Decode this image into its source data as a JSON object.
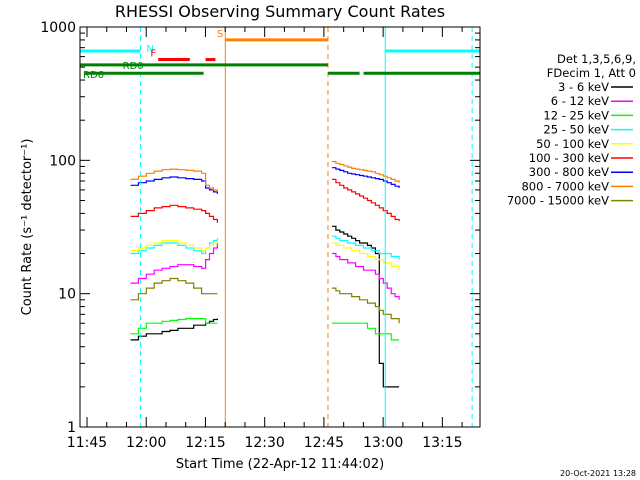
{
  "chart_data": {
    "type": "line",
    "title": "RHESSI Observing Summary Count Rates",
    "xlabel": "Start Time (22-Apr-12 11:44:02)",
    "ylabel": "Count Rate (s⁻¹ detector⁻¹)",
    "yscale": "log",
    "ylim": [
      1,
      1000
    ],
    "xlim_minutes": [
      -0.8,
      100.5
    ],
    "y_ticks": [
      {
        "v": 1,
        "label": "1"
      },
      {
        "v": 10,
        "label": "10"
      },
      {
        "v": 100,
        "label": "100"
      },
      {
        "v": 1000,
        "label": "1000"
      }
    ],
    "x_ticks": [
      {
        "v": 0.97,
        "label": "11:45"
      },
      {
        "v": 15.97,
        "label": "12:00"
      },
      {
        "v": 30.97,
        "label": "12:15"
      },
      {
        "v": 45.97,
        "label": "12:30"
      },
      {
        "v": 60.97,
        "label": "12:45"
      },
      {
        "v": 75.97,
        "label": "13:00"
      },
      {
        "v": 90.97,
        "label": "13:15"
      }
    ],
    "legend_header": [
      "Det 1,3,5,6,9,",
      "FDecim 1, Att 0"
    ],
    "series": [
      {
        "name": "3 - 6 keV",
        "color": "#000000",
        "x": [
          12,
          14,
          16,
          18,
          20,
          22,
          24,
          26,
          28,
          30,
          31,
          32,
          33,
          34,
          63,
          64,
          65,
          66,
          67,
          68,
          69,
          70,
          71,
          72,
          73,
          74,
          75,
          76,
          77,
          78,
          79,
          80
        ],
        "y": [
          4.5,
          4.8,
          5,
          5,
          5.2,
          5.3,
          5.5,
          5.5,
          5.8,
          5.8,
          6,
          6.2,
          6.4,
          6.5,
          32,
          30,
          29,
          28,
          27,
          26,
          25,
          24,
          24,
          23,
          22,
          20,
          3,
          2,
          2,
          2,
          2,
          2
        ]
      },
      {
        "name": "6 - 12 keV",
        "color": "#ff00ff",
        "x": [
          12,
          14,
          16,
          18,
          20,
          22,
          24,
          26,
          28,
          30,
          31,
          32,
          33,
          34,
          63,
          64,
          65,
          66,
          67,
          68,
          69,
          70,
          71,
          72,
          73,
          74,
          75,
          76,
          77,
          78,
          79,
          80
        ],
        "y": [
          12,
          13,
          14,
          15,
          15.5,
          16,
          16.5,
          16.5,
          16,
          15.5,
          18,
          20,
          22,
          24,
          20,
          19,
          18,
          18,
          17,
          17,
          16,
          16,
          15,
          15,
          15,
          14,
          13,
          12,
          11,
          10,
          9.5,
          9
        ]
      },
      {
        "name": "12 - 25 keV",
        "color": "#00ff00",
        "x": [
          12,
          14,
          16,
          18,
          20,
          22,
          24,
          26,
          28,
          30,
          31,
          32,
          33,
          34,
          63,
          64,
          65,
          66,
          67,
          68,
          69,
          70,
          71,
          72,
          73,
          74,
          75,
          76,
          77,
          78,
          79,
          80
        ],
        "y": [
          5,
          5.5,
          6,
          6,
          6.2,
          6.3,
          6.4,
          6.5,
          6.5,
          6.5,
          6,
          6,
          6,
          6,
          6,
          6,
          6,
          6,
          6,
          6,
          6,
          6,
          6,
          5.5,
          5.5,
          5,
          5,
          5,
          5,
          4.5,
          4.5,
          4.5
        ]
      },
      {
        "name": "25 - 50 keV",
        "color": "#00ffff",
        "x": [
          12,
          14,
          16,
          18,
          20,
          22,
          24,
          26,
          28,
          30,
          31,
          32,
          33,
          34,
          63,
          64,
          65,
          66,
          67,
          68,
          69,
          70,
          71,
          72,
          73,
          74,
          75,
          76,
          77,
          78,
          79,
          80
        ],
        "y": [
          20,
          21,
          22,
          23,
          24,
          24,
          23,
          22,
          21,
          20,
          22,
          24,
          25,
          26,
          27,
          26,
          25,
          25,
          24,
          24,
          23,
          23,
          22,
          22,
          21,
          21,
          20,
          20,
          20,
          19,
          19,
          18
        ]
      },
      {
        "name": "50 - 100 keV",
        "color": "#ffff00",
        "x": [
          12,
          14,
          16,
          18,
          20,
          22,
          24,
          26,
          28,
          30,
          31,
          32,
          33,
          34,
          63,
          64,
          65,
          66,
          67,
          68,
          69,
          70,
          71,
          72,
          73,
          74,
          75,
          76,
          77,
          78,
          79,
          80
        ],
        "y": [
          21,
          22,
          23,
          24,
          25,
          25,
          24,
          23,
          22,
          21,
          22,
          23,
          24,
          25,
          24,
          23,
          23,
          22,
          22,
          21,
          21,
          20,
          20,
          19,
          19,
          18,
          18,
          17,
          17,
          16,
          16,
          15
        ]
      },
      {
        "name": "100 - 300 keV",
        "color": "#ff0000",
        "x": [
          12,
          14,
          16,
          18,
          20,
          22,
          24,
          26,
          28,
          30,
          31,
          32,
          33,
          34,
          63,
          64,
          65,
          66,
          67,
          68,
          69,
          70,
          71,
          72,
          73,
          74,
          75,
          76,
          77,
          78,
          79,
          80
        ],
        "y": [
          38,
          40,
          42,
          44,
          45,
          46,
          45,
          44,
          43,
          42,
          40,
          38,
          36,
          34,
          72,
          68,
          65,
          62,
          60,
          58,
          56,
          54,
          52,
          50,
          48,
          46,
          44,
          42,
          40,
          38,
          36,
          35
        ]
      },
      {
        "name": "300 - 800 keV",
        "color": "#0000ff",
        "x": [
          12,
          14,
          16,
          18,
          20,
          22,
          24,
          26,
          28,
          30,
          31,
          32,
          33,
          34,
          63,
          64,
          65,
          66,
          67,
          68,
          69,
          70,
          71,
          72,
          73,
          74,
          75,
          76,
          77,
          78,
          79,
          80
        ],
        "y": [
          65,
          68,
          70,
          72,
          74,
          75,
          74,
          73,
          72,
          70,
          62,
          60,
          58,
          56,
          88,
          86,
          84,
          82,
          80,
          79,
          78,
          77,
          76,
          75,
          74,
          73,
          72,
          70,
          68,
          66,
          64,
          62
        ]
      },
      {
        "name": "800 - 7000 keV",
        "color": "#ff8000",
        "x": [
          12,
          14,
          16,
          18,
          20,
          22,
          24,
          26,
          28,
          30,
          31,
          32,
          33,
          34,
          63,
          64,
          65,
          66,
          67,
          68,
          69,
          70,
          71,
          72,
          73,
          74,
          75,
          76,
          77,
          78,
          79,
          80
        ],
        "y": [
          72,
          76,
          80,
          83,
          85,
          86,
          85,
          84,
          83,
          80,
          65,
          62,
          60,
          58,
          98,
          95,
          93,
          91,
          89,
          87,
          86,
          85,
          84,
          83,
          82,
          80,
          78,
          76,
          74,
          72,
          70,
          68
        ]
      },
      {
        "name": "7000 - 15000 keV",
        "color": "#808000",
        "x": [
          12,
          14,
          16,
          18,
          20,
          22,
          24,
          26,
          28,
          30,
          31,
          32,
          33,
          34,
          63,
          64,
          65,
          66,
          67,
          68,
          69,
          70,
          71,
          72,
          73,
          74,
          75,
          76,
          77,
          78,
          79,
          80
        ],
        "y": [
          9,
          10,
          11,
          12,
          12.5,
          13,
          12.5,
          12,
          11,
          10,
          10,
          10,
          10,
          10,
          11,
          10.5,
          10,
          10,
          10,
          9.5,
          9.5,
          9,
          9,
          8.5,
          8.5,
          8,
          7.5,
          7,
          7,
          6.5,
          6.5,
          6
        ]
      }
    ],
    "state_bars": [
      {
        "label": "N",
        "color": "#00ffff",
        "y": 660,
        "segments": [
          [
            -0.8,
            14.5
          ],
          [
            76.5,
            100.5
          ]
        ]
      },
      {
        "label": "F",
        "color": "#ff0000",
        "y": 570,
        "segments": [
          [
            19,
            27
          ],
          [
            31,
            33.5
          ]
        ]
      },
      {
        "label": "S",
        "color": "#ff8000",
        "y": 800,
        "segments": [
          [
            36,
            62
          ]
        ]
      },
      {
        "label": "RD0",
        "color": "#008000",
        "y": 520,
        "segments": [
          [
            -0.8,
            31
          ],
          [
            31,
            62
          ]
        ]
      },
      {
        "label": "RD6",
        "color": "#008000",
        "y": 450,
        "segments": [
          [
            0.5,
            30.5
          ],
          [
            62,
            70
          ],
          [
            71,
            100.5
          ]
        ]
      }
    ],
    "vlines": [
      {
        "x": 14.5,
        "color": "#00ffff",
        "style": "dashed"
      },
      {
        "x": 36,
        "color": "#ff8000",
        "style": "solid"
      },
      {
        "x": 62,
        "color": "#ff8000",
        "style": "dashed"
      },
      {
        "x": 76.5,
        "color": "#00ffff",
        "style": "solid"
      },
      {
        "x": 98.5,
        "color": "#00ffff",
        "style": "dashed"
      }
    ]
  },
  "footer_date": "20-Oct-2021 13:28"
}
